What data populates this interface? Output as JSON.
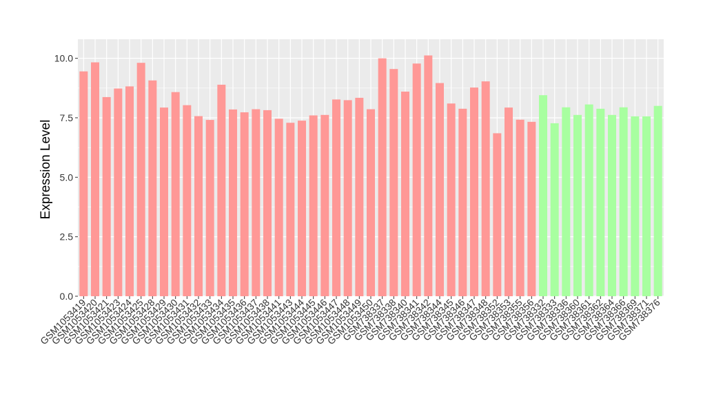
{
  "chart_data": {
    "type": "bar",
    "title": "",
    "xlabel": "",
    "ylabel": "Expression Level",
    "ylim": [
      0,
      10.8
    ],
    "yticks": [
      0.0,
      2.5,
      5.0,
      7.5,
      10.0
    ],
    "ytick_labels": [
      "0.0",
      "2.5",
      "5.0",
      "7.5",
      "10.0"
    ],
    "grid": true,
    "legend": "none",
    "colors": {
      "group1": "#FF9896",
      "group2": "#A8FFA0",
      "panel": "#EBEBEB",
      "grid": "#FFFFFF"
    },
    "categories": [
      "GSM1053419",
      "GSM1053420",
      "GSM1053421",
      "GSM1053423",
      "GSM1053424",
      "GSM1053425",
      "GSM1053428",
      "GSM1053429",
      "GSM1053430",
      "GSM1053431",
      "GSM1053432",
      "GSM1053433",
      "GSM1053434",
      "GSM1053435",
      "GSM1053436",
      "GSM1053437",
      "GSM1053438",
      "GSM1053441",
      "GSM1053443",
      "GSM1053444",
      "GSM1053445",
      "GSM1053446",
      "GSM1053447",
      "GSM1053448",
      "GSM1053449",
      "GSM1053450",
      "GSM738337",
      "GSM738338",
      "GSM738340",
      "GSM738341",
      "GSM738342",
      "GSM738344",
      "GSM738345",
      "GSM738346",
      "GSM738347",
      "GSM738348",
      "GSM738352",
      "GSM738353",
      "GSM738355",
      "GSM738356",
      "GSM738332",
      "GSM738333",
      "GSM738336",
      "GSM738360",
      "GSM738361",
      "GSM738362",
      "GSM738364",
      "GSM738366",
      "GSM738369",
      "GSM738371",
      "GSM738376"
    ],
    "values": [
      9.45,
      9.83,
      8.37,
      8.73,
      8.82,
      9.81,
      9.07,
      7.93,
      8.58,
      8.03,
      7.57,
      7.41,
      8.89,
      7.85,
      7.73,
      7.86,
      7.82,
      7.46,
      7.29,
      7.38,
      7.6,
      7.62,
      8.27,
      8.24,
      8.34,
      7.86,
      10.0,
      9.55,
      8.6,
      9.78,
      10.12,
      8.96,
      8.1,
      7.88,
      8.77,
      9.03,
      6.85,
      7.93,
      7.42,
      7.33,
      8.45,
      7.27,
      7.94,
      7.62,
      8.06,
      7.88,
      7.62,
      7.94,
      7.56,
      7.56,
      8.0
    ],
    "groups": [
      1,
      1,
      1,
      1,
      1,
      1,
      1,
      1,
      1,
      1,
      1,
      1,
      1,
      1,
      1,
      1,
      1,
      1,
      1,
      1,
      1,
      1,
      1,
      1,
      1,
      1,
      1,
      1,
      1,
      1,
      1,
      1,
      1,
      1,
      1,
      1,
      1,
      1,
      1,
      1,
      2,
      2,
      2,
      2,
      2,
      2,
      2,
      2,
      2,
      2,
      2
    ]
  }
}
